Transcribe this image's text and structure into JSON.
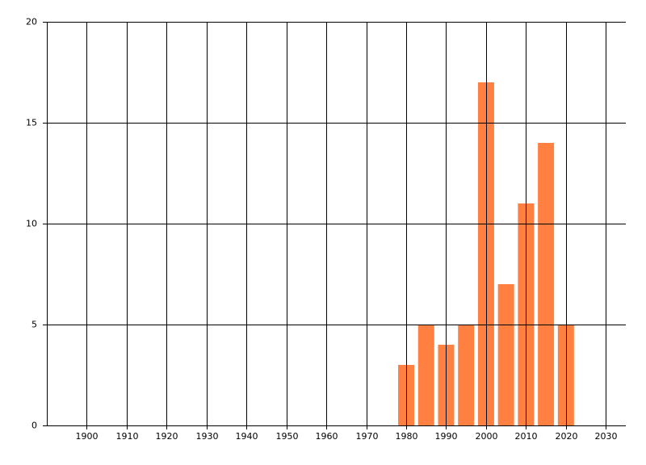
{
  "chart_data": {
    "type": "bar",
    "x": [
      1980,
      1985,
      1990,
      1995,
      2000,
      2005,
      2010,
      2015,
      2020
    ],
    "values": [
      3,
      5,
      4,
      5,
      17,
      7,
      11,
      14,
      5
    ],
    "color": "#ff8040",
    "xlim": [
      1890,
      2035
    ],
    "xticks": [
      1900,
      1910,
      1920,
      1930,
      1940,
      1950,
      1960,
      1970,
      1980,
      1990,
      2000,
      2010,
      2020,
      2030
    ],
    "ylim": [
      0,
      20
    ],
    "yticks": [
      0,
      5,
      10,
      15,
      20
    ],
    "grid": true
  }
}
